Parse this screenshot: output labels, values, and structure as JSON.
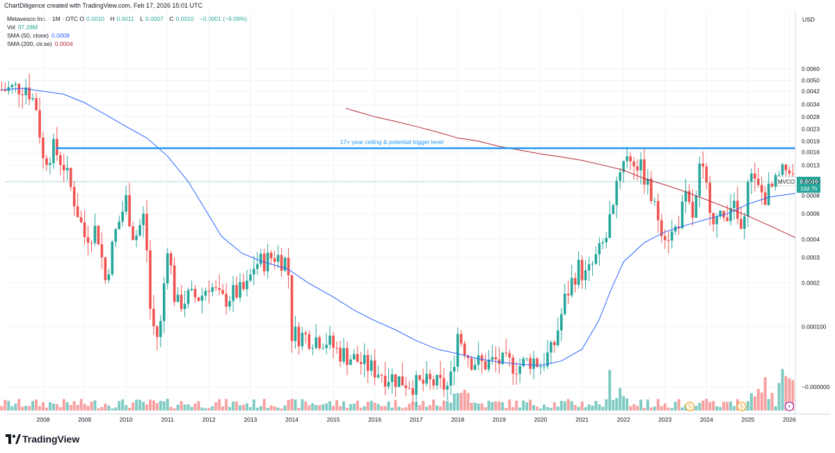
{
  "header": {
    "text": "ChartDiligence created with TradingView.com, Feb 17, 2026 15:01 UTC"
  },
  "legend": {
    "symbol": "Metavesco Inc. · 1M · OTC",
    "ohlc": [
      {
        "label": "O",
        "value": "0.0010"
      },
      {
        "label": "H",
        "value": "0.0011"
      },
      {
        "label": "L",
        "value": "0.0007"
      },
      {
        "label": "C",
        "value": "0.0010"
      }
    ],
    "change": "−0.0001 (−9.09%)",
    "vol_label": "Vol",
    "vol_value": "97.28M",
    "sma50_label": "SMA (50, close)",
    "sma50_value": "0.0008",
    "sma200_label": "SMA (200, close)",
    "sma200_value": "0.0004"
  },
  "footer": {
    "brand": "TradingView"
  },
  "colors": {
    "up": "#26a69a",
    "down": "#ef5350",
    "vol_up": "#80cbc4",
    "vol_down": "#f7a1a1",
    "sma50": "#2962ff",
    "sma200": "#b22833",
    "ceiling": "#2196f3",
    "price_tag": "#26a69a",
    "grid": "#f0f3fa"
  },
  "chart_data": {
    "type": "candlestick",
    "interval": "1M",
    "y_scale": "log",
    "currency": "USD",
    "y_ticks": [
      "0.0060",
      "0.0050",
      "0.0042",
      "0.0034",
      "0.0028",
      "0.0023",
      "0.0019",
      "0.0016",
      "0.0013",
      "0.0010",
      "0.0008",
      "0.0006",
      "0.0004",
      "0.0003",
      "0.0002",
      "0.000100",
      "−0.000000"
    ],
    "x_ticks": [
      "2008",
      "2009",
      "2010",
      "2011",
      "2012",
      "2013",
      "2014",
      "2015",
      "2016",
      "2017",
      "2018",
      "2019",
      "2020",
      "2021",
      "2022",
      "2023",
      "2024",
      "2025",
      "2026"
    ],
    "ceiling": {
      "value": 0.0017,
      "label": "17+ year ceiling & potential trigger level"
    },
    "last_price": {
      "ticker": "MVCO",
      "value": "0.0010",
      "countdown": "10d 7h"
    },
    "events": [
      {
        "year": 2023.6,
        "icon": "S"
      },
      {
        "year": 2024.85,
        "icon": "S"
      },
      {
        "year": 2026.0,
        "icon": "⚡"
      }
    ],
    "candles_anchors": [
      [
        2007.1,
        0.0043
      ],
      [
        2007.4,
        0.0045
      ],
      [
        2007.6,
        0.0046
      ],
      [
        2007.85,
        0.0032
      ],
      [
        2008.0,
        0.0014
      ],
      [
        2008.25,
        0.0017
      ],
      [
        2008.5,
        0.0013
      ],
      [
        2008.75,
        0.00075
      ],
      [
        2009.0,
        0.00042
      ],
      [
        2009.3,
        0.00048
      ],
      [
        2009.5,
        0.00021
      ],
      [
        2009.75,
        0.00045
      ],
      [
        2010.0,
        0.00075
      ],
      [
        2010.2,
        0.0004
      ],
      [
        2010.45,
        0.0006
      ],
      [
        2010.6,
        0.00011
      ],
      [
        2010.8,
        8e-05
      ],
      [
        2011.0,
        0.00038
      ],
      [
        2011.2,
        0.00014
      ],
      [
        2011.5,
        0.00016
      ],
      [
        2011.8,
        0.00016
      ],
      [
        2012.0,
        0.0002
      ],
      [
        2012.3,
        0.00015
      ],
      [
        2012.6,
        0.00017
      ],
      [
        2012.9,
        0.00018
      ],
      [
        2013.1,
        0.00027
      ],
      [
        2013.4,
        0.00029
      ],
      [
        2013.6,
        0.00031
      ],
      [
        2013.9,
        0.00028
      ],
      [
        2014.0,
        9e-05
      ],
      [
        2014.4,
        8.5e-05
      ],
      [
        2014.8,
        8.2e-05
      ],
      [
        2015.1,
        6.8e-05
      ],
      [
        2015.5,
        6e-05
      ],
      [
        2015.9,
        5.2e-05
      ],
      [
        2016.3,
        4.6e-05
      ],
      [
        2016.7,
        4.2e-05
      ],
      [
        2017.0,
        4e-05
      ],
      [
        2017.4,
        4.1e-05
      ],
      [
        2017.8,
        3.8e-05
      ],
      [
        2018.0,
        9e-05
      ],
      [
        2018.3,
        6e-05
      ],
      [
        2018.6,
        5.5e-05
      ],
      [
        2018.9,
        5.8e-05
      ],
      [
        2019.2,
        5.6e-05
      ],
      [
        2019.5,
        5.4e-05
      ],
      [
        2019.8,
        6e-05
      ],
      [
        2020.0,
        5.5e-05
      ],
      [
        2020.3,
        7e-05
      ],
      [
        2020.6,
        0.00016
      ],
      [
        2020.9,
        0.00026
      ],
      [
        2021.1,
        0.00022
      ],
      [
        2021.4,
        0.00032
      ],
      [
        2021.6,
        0.00042
      ],
      [
        2021.8,
        0.00095
      ],
      [
        2022.0,
        0.0015
      ],
      [
        2022.3,
        0.0014
      ],
      [
        2022.5,
        0.0011
      ],
      [
        2022.75,
        0.00065
      ],
      [
        2023.0,
        0.00045
      ],
      [
        2023.2,
        0.00043
      ],
      [
        2023.5,
        0.00075
      ],
      [
        2023.7,
        0.00055
      ],
      [
        2023.85,
        0.0013
      ],
      [
        2024.0,
        0.0009
      ],
      [
        2024.2,
        0.00055
      ],
      [
        2024.4,
        0.00055
      ],
      [
        2024.6,
        0.00075
      ],
      [
        2024.8,
        0.00048
      ],
      [
        2024.9,
        0.00042
      ],
      [
        2025.0,
        0.0012
      ],
      [
        2025.2,
        0.0009
      ],
      [
        2025.4,
        0.0008
      ],
      [
        2025.6,
        0.0009
      ],
      [
        2025.8,
        0.0011
      ],
      [
        2026.0,
        0.0013
      ],
      [
        2026.1,
        0.001
      ]
    ],
    "sma50": [
      [
        2007.0,
        0.0043
      ],
      [
        2007.5,
        0.0044
      ],
      [
        2008.0,
        0.0042
      ],
      [
        2008.5,
        0.004
      ],
      [
        2009.0,
        0.0035
      ],
      [
        2009.5,
        0.0029
      ],
      [
        2010.0,
        0.0024
      ],
      [
        2010.5,
        0.002
      ],
      [
        2011.0,
        0.0015
      ],
      [
        2011.5,
        0.001
      ],
      [
        2011.9,
        0.00065
      ],
      [
        2012.3,
        0.00042
      ],
      [
        2012.8,
        0.00032
      ],
      [
        2013.3,
        0.00028
      ],
      [
        2013.9,
        0.00025
      ],
      [
        2014.4,
        0.0002
      ],
      [
        2015.0,
        0.00016
      ],
      [
        2015.5,
        0.00013
      ],
      [
        2016.0,
        0.00011
      ],
      [
        2016.5,
        9.5e-05
      ],
      [
        2017.0,
        8e-05
      ],
      [
        2017.5,
        7e-05
      ],
      [
        2018.0,
        6.5e-05
      ],
      [
        2018.5,
        6e-05
      ],
      [
        2019.0,
        5.7e-05
      ],
      [
        2019.5,
        5.5e-05
      ],
      [
        2020.0,
        5.4e-05
      ],
      [
        2020.5,
        5.8e-05
      ],
      [
        2021.0,
        7e-05
      ],
      [
        2021.4,
        0.00011
      ],
      [
        2021.7,
        0.00018
      ],
      [
        2022.0,
        0.00028
      ],
      [
        2022.5,
        0.00038
      ],
      [
        2023.0,
        0.00045
      ],
      [
        2023.5,
        0.0005
      ],
      [
        2024.0,
        0.00055
      ],
      [
        2024.5,
        0.0006
      ],
      [
        2025.0,
        0.0007
      ],
      [
        2025.5,
        0.00078
      ],
      [
        2026.0,
        0.00082
      ],
      [
        2026.15,
        0.00083
      ]
    ],
    "sma200": [
      [
        2015.3,
        0.0032
      ],
      [
        2016.0,
        0.0028
      ],
      [
        2016.5,
        0.0026
      ],
      [
        2017.0,
        0.0024
      ],
      [
        2017.5,
        0.0022
      ],
      [
        2018.0,
        0.002
      ],
      [
        2018.5,
        0.0019
      ],
      [
        2019.0,
        0.00175
      ],
      [
        2019.5,
        0.00165
      ],
      [
        2020.0,
        0.00155
      ],
      [
        2020.5,
        0.00148
      ],
      [
        2021.0,
        0.0014
      ],
      [
        2021.5,
        0.0013
      ],
      [
        2022.0,
        0.0012
      ],
      [
        2022.5,
        0.00105
      ],
      [
        2023.0,
        0.00095
      ],
      [
        2023.5,
        0.00085
      ],
      [
        2024.0,
        0.00075
      ],
      [
        2024.5,
        0.00066
      ],
      [
        2025.0,
        0.00058
      ],
      [
        2025.5,
        0.0005
      ],
      [
        2026.0,
        0.00043
      ],
      [
        2026.15,
        0.00041
      ]
    ]
  }
}
